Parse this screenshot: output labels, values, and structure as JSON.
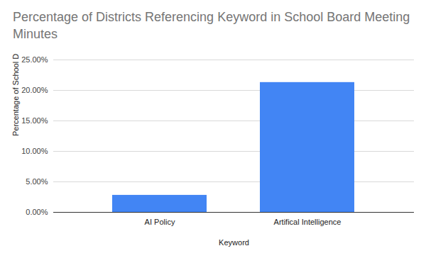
{
  "chart_data": {
    "type": "bar",
    "title": "Percentage of Districts Referencing Keyword in School Board Meeting Minutes",
    "x_label": "Keyword",
    "y_label": "Percentage of School Districts",
    "categories": [
      "AI Policy",
      "Artifical Intelligence"
    ],
    "values": [
      2.8,
      21.3
    ],
    "color": "#4285f4",
    "ylim": [
      0,
      25
    ],
    "yticks": [
      {
        "value": 0,
        "label": "0.00%"
      },
      {
        "value": 5,
        "label": "5.00%"
      },
      {
        "value": 10,
        "label": "10.00%"
      },
      {
        "value": 15,
        "label": "15.00%"
      },
      {
        "value": 20,
        "label": "20.00%"
      },
      {
        "value": 25,
        "label": "25.00%"
      }
    ],
    "grid": true
  }
}
